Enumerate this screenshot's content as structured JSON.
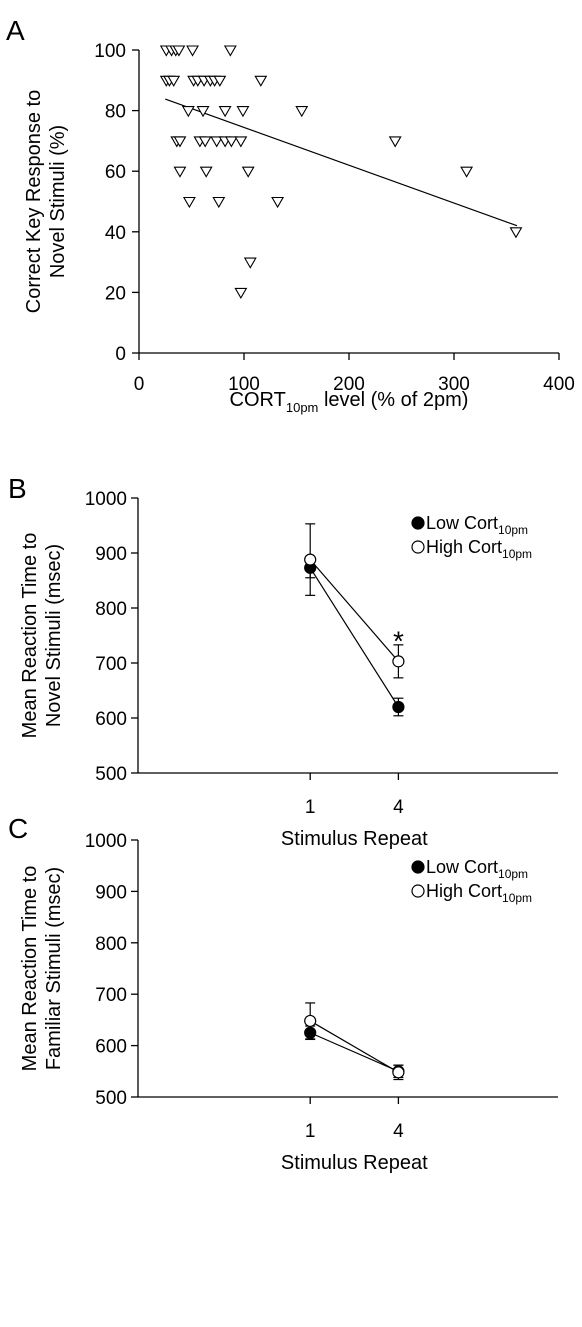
{
  "chart_data": [
    {
      "type": "scatter",
      "panel_label": "A",
      "xlabel": {
        "main": "CORT",
        "sub": "10pm",
        "rest": " level (% of 2pm)"
      },
      "ylabel": [
        "Correct Key Response to",
        "Novel Stimuli (%)"
      ],
      "xlim": [
        0,
        400
      ],
      "ylim": [
        0,
        100
      ],
      "xticks": [
        0,
        100,
        200,
        300,
        400
      ],
      "yticks": [
        0,
        20,
        40,
        60,
        80,
        100
      ],
      "marker": "open-triangle-down",
      "points": [
        [
          26,
          100
        ],
        [
          31,
          100
        ],
        [
          35,
          100
        ],
        [
          38,
          100
        ],
        [
          51,
          100
        ],
        [
          87,
          100
        ],
        [
          26,
          90
        ],
        [
          29,
          90
        ],
        [
          33,
          90
        ],
        [
          52,
          90
        ],
        [
          56,
          90
        ],
        [
          62,
          90
        ],
        [
          68,
          90
        ],
        [
          72,
          90
        ],
        [
          77,
          90
        ],
        [
          116,
          90
        ],
        [
          47,
          80
        ],
        [
          61,
          80
        ],
        [
          82,
          80
        ],
        [
          99,
          80
        ],
        [
          155,
          80
        ],
        [
          36,
          70
        ],
        [
          39,
          70
        ],
        [
          58,
          70
        ],
        [
          63,
          70
        ],
        [
          74,
          70
        ],
        [
          82,
          70
        ],
        [
          88,
          70
        ],
        [
          97,
          70
        ],
        [
          244,
          70
        ],
        [
          39,
          60
        ],
        [
          64,
          60
        ],
        [
          104,
          60
        ],
        [
          312,
          60
        ],
        [
          48,
          50
        ],
        [
          76,
          50
        ],
        [
          132,
          50
        ],
        [
          359,
          40
        ],
        [
          106,
          30
        ],
        [
          97,
          20
        ]
      ],
      "trendline": {
        "x": [
          25,
          360
        ],
        "y": [
          83.8,
          42.0
        ]
      }
    },
    {
      "type": "line",
      "panel_label": "B",
      "xlabel": "Stimulus Repeat",
      "ylabel": [
        "Mean Reaction Time to",
        "Novel Stimuli (msec)"
      ],
      "categories": [
        "1",
        "4"
      ],
      "ylim": [
        500,
        1000
      ],
      "yticks": [
        500,
        600,
        700,
        800,
        900,
        1000
      ],
      "legend_position": "top-right",
      "series": [
        {
          "name": "Low Cort",
          "name_sub": "10pm",
          "marker": "filled-circle",
          "color": "#000000",
          "values": [
            873,
            620
          ],
          "errors": [
            18,
            16
          ]
        },
        {
          "name": "High Cort",
          "name_sub": "10pm",
          "marker": "open-circle",
          "color": "#ffffff",
          "values": [
            888,
            703
          ],
          "errors": [
            65,
            30
          ]
        }
      ],
      "annotations": [
        {
          "text": "*",
          "category": "4",
          "y": 748
        }
      ]
    },
    {
      "type": "line",
      "panel_label": "C",
      "xlabel": "Stimulus Repeat",
      "ylabel": [
        "Mean Reaction Time to",
        "Familiar Stimuli (msec)"
      ],
      "categories": [
        "1",
        "4"
      ],
      "ylim": [
        500,
        1000
      ],
      "yticks": [
        500,
        600,
        700,
        800,
        900,
        1000
      ],
      "legend_position": "top-right",
      "series": [
        {
          "name": "Low Cort",
          "name_sub": "10pm",
          "marker": "filled-circle",
          "color": "#000000",
          "values": [
            625,
            550
          ],
          "errors": [
            13,
            12
          ]
        },
        {
          "name": "High Cort",
          "name_sub": "10pm",
          "marker": "open-circle",
          "color": "#ffffff",
          "values": [
            648,
            548
          ],
          "errors": [
            35,
            14
          ]
        }
      ],
      "annotations": []
    }
  ]
}
